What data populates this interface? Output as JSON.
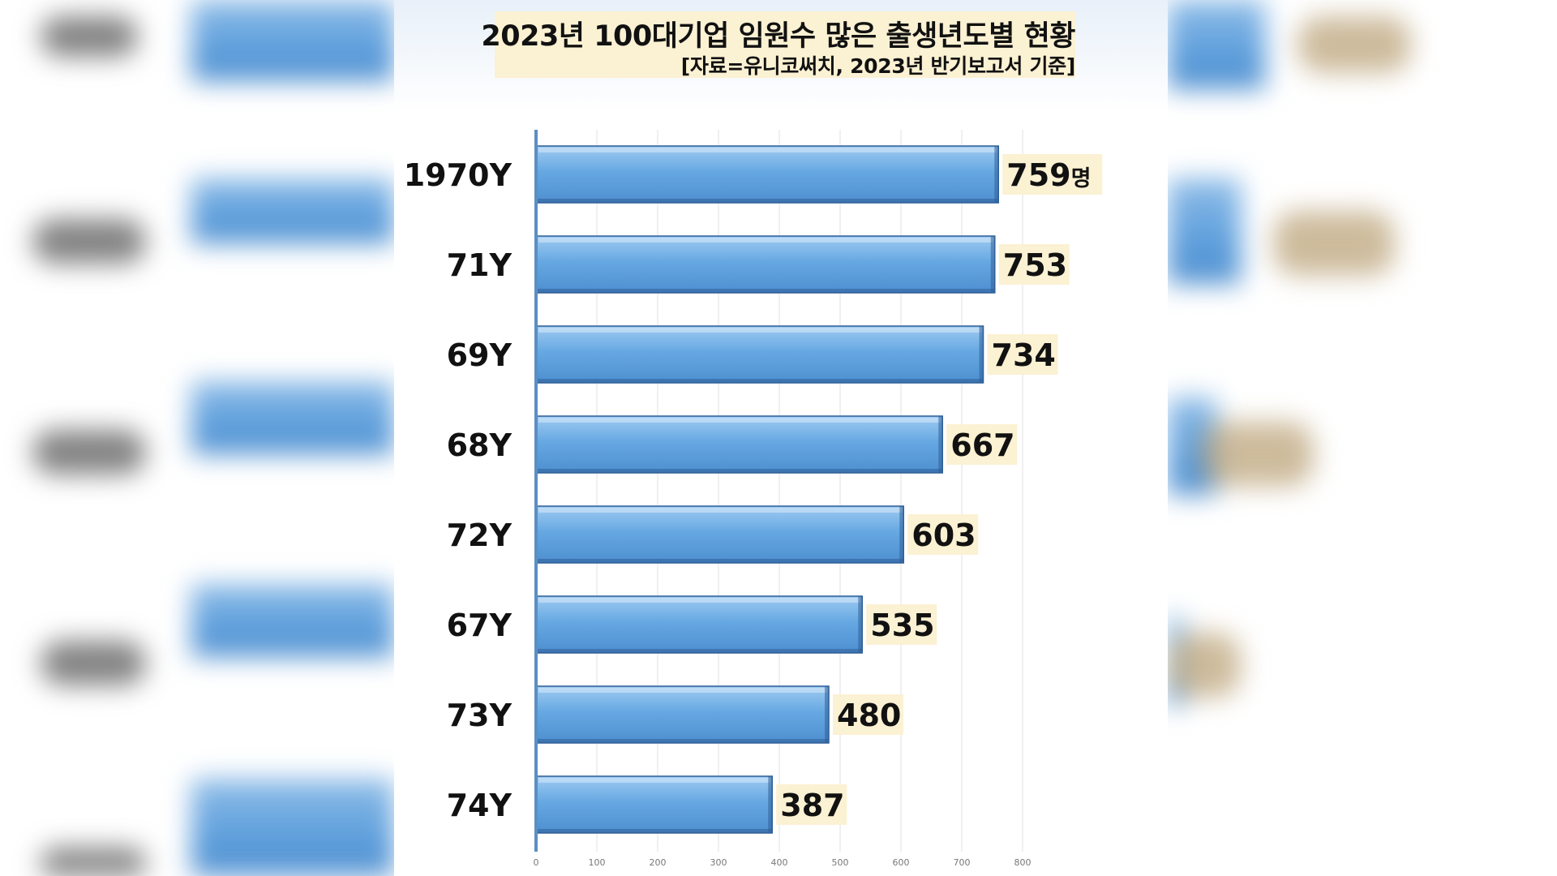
{
  "header": {
    "title": "2023년 100대기업 임원수 많은 출생년도별 현황",
    "subtitle": "[자료=유니코써치, 2023년 반기보고서 기준]"
  },
  "chart_data": {
    "type": "bar",
    "orientation": "horizontal",
    "title": "2023년 100대기업 임원수 많은 출생년도별 현황",
    "subtitle": "[자료=유니코써치, 2023년 반기보고서 기준]",
    "categories": [
      "1970Y",
      "71Y",
      "69Y",
      "68Y",
      "72Y",
      "67Y",
      "73Y",
      "74Y"
    ],
    "values": [
      759,
      753,
      734,
      667,
      603,
      535,
      480,
      387
    ],
    "value_labels": [
      "759",
      "753",
      "734",
      "667",
      "603",
      "535",
      "480",
      "387"
    ],
    "first_value_unit": "명",
    "x_ticks": [
      0,
      100,
      200,
      300,
      400,
      500,
      600,
      700,
      800
    ],
    "xlim": [
      0,
      800
    ],
    "xlabel": "",
    "ylabel": "",
    "grid": "vertical",
    "legend": "none",
    "colors": {
      "bar_top": "#9fcbf2",
      "bar_mid": "#66a8e2",
      "bar_bottom": "#4e8fd0",
      "bar_edge": "#2f5f97",
      "label_bg": "#fbf1d3",
      "title_bg": "#fbf1d3"
    }
  }
}
